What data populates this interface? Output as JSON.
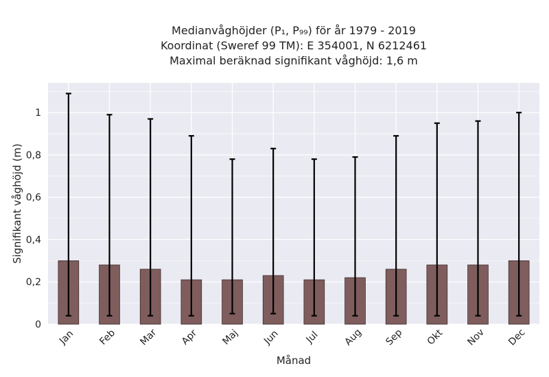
{
  "chart_data": {
    "type": "bar",
    "title": [
      "Medianvåghöjder (P₁, P₉₉) för år 1979 - 2019",
      "Koordinat (Sweref 99 TM): E 354001, N 6212461",
      "Maximal beräknad signifikant våghöjd: 1,6 m"
    ],
    "xlabel": "Månad",
    "ylabel": "Signifikant våghöjd (m)",
    "categories": [
      "Jan",
      "Feb",
      "Mar",
      "Apr",
      "Maj",
      "Jun",
      "Jul",
      "Aug",
      "Sep",
      "Okt",
      "Nov",
      "Dec"
    ],
    "values": [
      0.3,
      0.28,
      0.26,
      0.21,
      0.21,
      0.23,
      0.21,
      0.22,
      0.26,
      0.28,
      0.28,
      0.3
    ],
    "error_low": [
      0.04,
      0.04,
      0.04,
      0.04,
      0.05,
      0.05,
      0.04,
      0.04,
      0.04,
      0.04,
      0.04,
      0.04
    ],
    "error_high": [
      1.09,
      0.99,
      0.97,
      0.89,
      0.78,
      0.83,
      0.78,
      0.79,
      0.89,
      0.95,
      0.96,
      1.0
    ],
    "ylim": [
      0,
      1.14
    ],
    "yticks": [
      0,
      0.2,
      0.4,
      0.6,
      0.8,
      1.0
    ],
    "ytick_labels": [
      "0",
      "0,2",
      "0,4",
      "0,6",
      "0,8",
      "1"
    ],
    "grid": true,
    "legend": "none",
    "colors": {
      "bar": "#7f5d5d",
      "bar_edge": "#3d2c2c",
      "error_bar": "#000000",
      "plot_background": "#eaeaf2",
      "grid": "#ffffff"
    }
  }
}
